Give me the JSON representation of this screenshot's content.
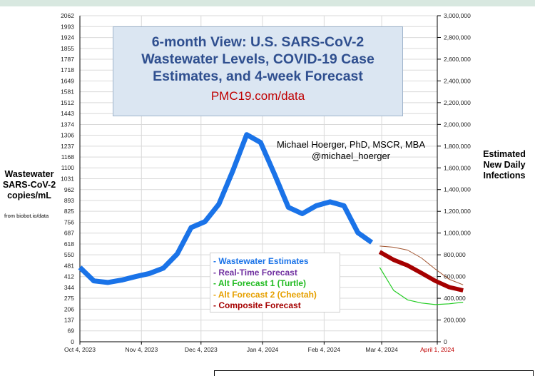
{
  "chart_data": {
    "type": "line",
    "title": "6-month View: U.S. SARS-CoV-2 Wastewater Levels, COVID-19 Case Estimates, and 4-week Forecast",
    "subtitle": "PMC19.com/data",
    "author": "Michael Hoerger, PhD, MSCR, MBA",
    "handle": "@michael_hoerger",
    "ylabel_left": "Wastewater SARS-CoV-2 copies/mL",
    "ylabel_right": "Estimated New Daily Infections",
    "source": "from biobot.io/data",
    "x_ticks": [
      "Oct 4, 2023",
      "Nov 4, 2023",
      "Dec 4, 2023",
      "Jan 4, 2024",
      "Feb 4, 2024",
      "Mar 4, 2024",
      "April 1, 2024"
    ],
    "x_tick_days": [
      0,
      31,
      61,
      92,
      123,
      152,
      180
    ],
    "y_left_ticks": [
      0,
      69,
      137,
      206,
      275,
      344,
      412,
      481,
      550,
      618,
      687,
      756,
      825,
      893,
      962,
      1031,
      1100,
      1168,
      1237,
      1306,
      1374,
      1443,
      1512,
      1581,
      1649,
      1718,
      1787,
      1855,
      1924,
      1993,
      2062
    ],
    "y_right_ticks": [
      "0",
      "200,000",
      "400,000",
      "600,000",
      "800,000",
      "1,000,000",
      "1,200,000",
      "1,400,000",
      "1,600,000",
      "1,800,000",
      "2,000,000",
      "2,200,000",
      "2,400,000",
      "2,600,000",
      "2,800,000",
      "3,000,000"
    ],
    "ylim_left": [
      0,
      2062
    ],
    "ylim_right": [
      0,
      3000000
    ],
    "grid": true,
    "legend_position": "center",
    "series": [
      {
        "name": "- Wastewater Estimates",
        "color": "#1a73e8",
        "x": [
          0,
          7,
          14,
          21,
          28,
          35,
          42,
          49,
          56,
          63,
          70,
          77,
          84,
          91,
          98,
          105,
          112,
          119,
          126,
          133,
          140,
          147
        ],
        "y": [
          470,
          385,
          375,
          390,
          412,
          432,
          465,
          555,
          722,
          760,
          870,
          1080,
          1310,
          1260,
          1060,
          850,
          810,
          860,
          885,
          860,
          690,
          628
        ]
      },
      {
        "name": "- Real-Time Forecast",
        "color": "#7030a0",
        "x": [],
        "y": []
      },
      {
        "name": "- Alt Forecast 1 (Turtle)",
        "color": "#22cc22",
        "x": [
          151,
          158,
          165,
          172,
          179,
          186,
          193
        ],
        "y": [
          470,
          325,
          265,
          245,
          235,
          240,
          250
        ]
      },
      {
        "name": "- Alt Forecast 2 (Cheetah)",
        "color": "#e6a000",
        "x": [],
        "y": []
      },
      {
        "name": "- Composite Forecast",
        "color": "#a50000",
        "x": [
          151,
          158,
          165,
          172,
          179,
          186,
          193
        ],
        "y": [
          568,
          518,
          483,
          435,
          385,
          345,
          325
        ]
      },
      {
        "color": "#a0522d",
        "x": [
          151,
          158,
          165,
          172,
          179,
          186,
          193
        ],
        "y": [
          605,
          598,
          580,
          530,
          460,
          395,
          360
        ]
      }
    ]
  }
}
